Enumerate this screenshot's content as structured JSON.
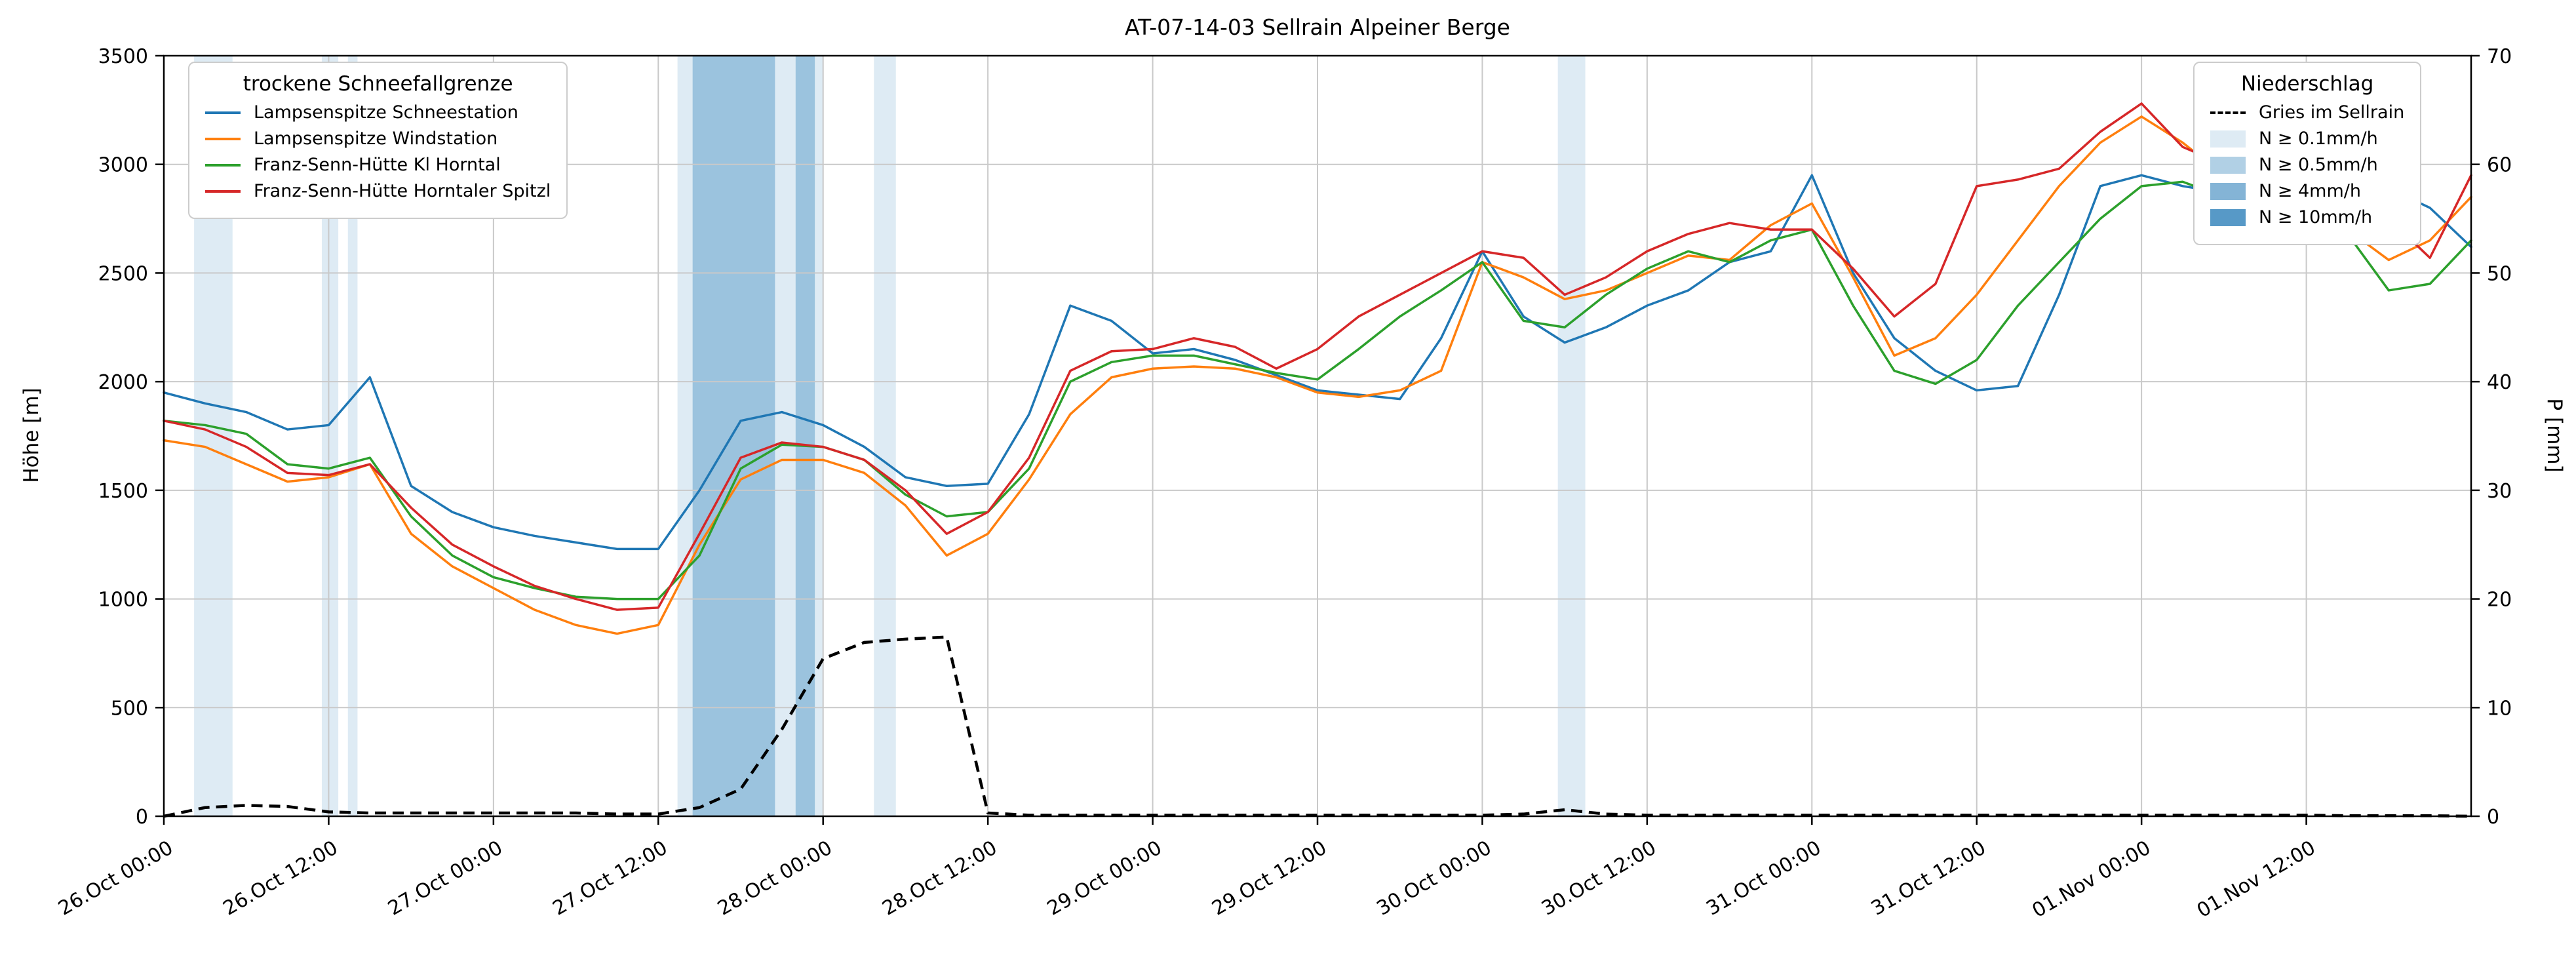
{
  "title": "AT-07-14-03 Sellrain Alpeiner Berge",
  "axes": {
    "y_left_label": "Höhe [m]",
    "y_right_label": "P [mm]",
    "y_left_ticks": [
      0,
      500,
      1000,
      1500,
      2000,
      2500,
      3000,
      3500
    ],
    "y_right_ticks": [
      0,
      10,
      20,
      30,
      40,
      50,
      60,
      70
    ],
    "x_ticks": [
      {
        "hour": 0,
        "label": "26.Oct 00:00"
      },
      {
        "hour": 12,
        "label": "26.Oct 12:00"
      },
      {
        "hour": 24,
        "label": "27.Oct 00:00"
      },
      {
        "hour": 36,
        "label": "27.Oct 12:00"
      },
      {
        "hour": 48,
        "label": "28.Oct 00:00"
      },
      {
        "hour": 60,
        "label": "28.Oct 12:00"
      },
      {
        "hour": 72,
        "label": "29.Oct 00:00"
      },
      {
        "hour": 84,
        "label": "29.Oct 12:00"
      },
      {
        "hour": 96,
        "label": "30.Oct 00:00"
      },
      {
        "hour": 108,
        "label": "30.Oct 12:00"
      },
      {
        "hour": 120,
        "label": "31.Oct 00:00"
      },
      {
        "hour": 132,
        "label": "31.Oct 12:00"
      },
      {
        "hour": 144,
        "label": "01.Nov 00:00"
      },
      {
        "hour": 156,
        "label": "01.Nov 12:00"
      }
    ]
  },
  "legend_sfg": {
    "title": "trockene Schneefallgrenze",
    "items": [
      {
        "label": "Lampsenspitze Schneestation",
        "color": "#1f77b4"
      },
      {
        "label": "Lampsenspitze Windstation",
        "color": "#ff7f0e"
      },
      {
        "label": "Franz-Senn-Hütte Kl Horntal",
        "color": "#2ca02c"
      },
      {
        "label": "Franz-Senn-Hütte Horntaler Spitzl",
        "color": "#d62728"
      }
    ]
  },
  "legend_precip": {
    "title": "Niederschlag",
    "items": [
      {
        "label": "Gries im Sellrain",
        "type": "dashed-line",
        "color": "#000000"
      },
      {
        "label": "N ≥ 0.1mm/h",
        "type": "patch",
        "color": "rgba(31,119,180,0.15)"
      },
      {
        "label": "N ≥ 0.5mm/h",
        "type": "patch",
        "color": "rgba(31,119,180,0.35)"
      },
      {
        "label": "N ≥ 4mm/h",
        "type": "patch",
        "color": "rgba(31,119,180,0.55)"
      },
      {
        "label": "N ≥ 10mm/h",
        "type": "patch",
        "color": "rgba(31,119,180,0.75)"
      }
    ]
  },
  "band_colors": {
    "1": "rgba(31,119,180,0.15)",
    "2": "rgba(31,119,180,0.35)",
    "3": "rgba(31,119,180,0.55)",
    "4": "rgba(31,119,180,0.75)"
  },
  "chart_data": {
    "type": "line",
    "title": "AT-07-14-03 Sellrain Alpeiner Berge",
    "xlabel": "",
    "ylabel_left": "Höhe [m]",
    "ylabel_right": "P [mm]",
    "x_unit": "hours since 26.Oct 00:00",
    "x_range": [
      0,
      168
    ],
    "ylim_left": [
      0,
      3500
    ],
    "ylim_right": [
      0,
      70
    ],
    "grid": true,
    "x_hours": [
      0,
      3,
      6,
      9,
      12,
      15,
      18,
      21,
      24,
      27,
      30,
      33,
      36,
      39,
      42,
      45,
      48,
      51,
      54,
      57,
      60,
      63,
      66,
      69,
      72,
      75,
      78,
      81,
      84,
      87,
      90,
      93,
      96,
      99,
      102,
      105,
      108,
      111,
      114,
      117,
      120,
      123,
      126,
      129,
      132,
      135,
      138,
      141,
      144,
      147,
      150,
      153,
      156,
      159,
      162,
      165,
      168
    ],
    "series": [
      {
        "name": "Lampsenspitze Schneestation",
        "color": "#1f77b4",
        "axis": "left",
        "values": [
          1950,
          1900,
          1860,
          1780,
          1800,
          2020,
          1520,
          1400,
          1330,
          1290,
          1260,
          1230,
          1230,
          1500,
          1820,
          1860,
          1800,
          1700,
          1560,
          1520,
          1530,
          1850,
          2350,
          2280,
          2130,
          2150,
          2100,
          2030,
          1960,
          1940,
          1920,
          2200,
          2600,
          2300,
          2180,
          2250,
          2350,
          2420,
          2550,
          2600,
          2950,
          2500,
          2200,
          2050,
          1960,
          1980,
          2400,
          2900,
          2950,
          2900,
          2870,
          2840,
          2810,
          2830,
          2890,
          2800,
          2620
        ]
      },
      {
        "name": "Lampsenspitze Windstation",
        "color": "#ff7f0e",
        "axis": "left",
        "values": [
          1730,
          1700,
          1620,
          1540,
          1560,
          1620,
          1300,
          1150,
          1050,
          950,
          880,
          840,
          880,
          1250,
          1550,
          1640,
          1640,
          1580,
          1430,
          1200,
          1300,
          1550,
          1850,
          2020,
          2060,
          2070,
          2060,
          2020,
          1950,
          1930,
          1960,
          2050,
          2550,
          2480,
          2380,
          2420,
          2500,
          2580,
          2560,
          2720,
          2820,
          2480,
          2120,
          2200,
          2400,
          2650,
          2900,
          3100,
          3220,
          3100,
          2950,
          2870,
          2800,
          2700,
          2560,
          2650,
          2850
        ]
      },
      {
        "name": "Franz-Senn-Hütte Kl Horntal",
        "color": "#2ca02c",
        "axis": "left",
        "values": [
          1820,
          1800,
          1760,
          1620,
          1600,
          1650,
          1380,
          1200,
          1100,
          1050,
          1010,
          1000,
          1000,
          1200,
          1600,
          1710,
          1700,
          1640,
          1480,
          1380,
          1400,
          1600,
          2000,
          2090,
          2120,
          2120,
          2080,
          2040,
          2010,
          2150,
          2300,
          2420,
          2550,
          2280,
          2250,
          2400,
          2520,
          2600,
          2550,
          2650,
          2700,
          2350,
          2050,
          1990,
          2100,
          2350,
          2550,
          2750,
          2900,
          2920,
          2850,
          2780,
          2760,
          2680,
          2420,
          2450,
          2650
        ]
      },
      {
        "name": "Franz-Senn-Hütte Horntaler Spitzl",
        "color": "#d62728",
        "axis": "left",
        "values": [
          1820,
          1780,
          1700,
          1580,
          1570,
          1620,
          1420,
          1250,
          1150,
          1060,
          1000,
          950,
          960,
          1300,
          1650,
          1720,
          1700,
          1640,
          1500,
          1300,
          1400,
          1650,
          2050,
          2140,
          2150,
          2200,
          2160,
          2060,
          2150,
          2300,
          2400,
          2500,
          2600,
          2570,
          2400,
          2480,
          2600,
          2680,
          2730,
          2700,
          2700,
          2520,
          2300,
          2450,
          2900,
          2930,
          2980,
          3150,
          3280,
          3080,
          3000,
          2950,
          2900,
          2860,
          2750,
          2570,
          2950
        ]
      }
    ],
    "precip_series": {
      "name": "Gries im Sellrain",
      "color": "#000000",
      "style": "dashed",
      "axis": "right",
      "values": [
        0,
        0.8,
        1.0,
        0.9,
        0.4,
        0.3,
        0.3,
        0.3,
        0.3,
        0.3,
        0.3,
        0.2,
        0.2,
        0.8,
        2.5,
        8,
        14.5,
        16,
        16.3,
        16.5,
        0.3,
        0.1,
        0.1,
        0.1,
        0.1,
        0.1,
        0.1,
        0.1,
        0.1,
        0.1,
        0.1,
        0.1,
        0.1,
        0.2,
        0.6,
        0.2,
        0.1,
        0.1,
        0.1,
        0.1,
        0.1,
        0.1,
        0.1,
        0.1,
        0.1,
        0.1,
        0.1,
        0.1,
        0.1,
        0.1,
        0.1,
        0.1,
        0.1,
        0.05,
        0.05,
        0.05,
        0
      ]
    },
    "precip_bands": [
      {
        "start_h": 2.2,
        "end_h": 5.0,
        "intensity": "N ≥ 0.1mm/h",
        "level": 1
      },
      {
        "start_h": 11.5,
        "end_h": 12.7,
        "intensity": "N ≥ 0.1mm/h",
        "level": 1
      },
      {
        "start_h": 13.4,
        "end_h": 14.1,
        "intensity": "N ≥ 0.1mm/h",
        "level": 1
      },
      {
        "start_h": 37.4,
        "end_h": 48.0,
        "intensity": "N ≥ 0.1mm/h",
        "level": 1
      },
      {
        "start_h": 38.5,
        "end_h": 44.5,
        "intensity": "N ≥ 0.5mm/h",
        "level": 2
      },
      {
        "start_h": 46.0,
        "end_h": 47.4,
        "intensity": "N ≥ 0.5mm/h",
        "level": 2
      },
      {
        "start_h": 51.7,
        "end_h": 53.3,
        "intensity": "N ≥ 0.1mm/h",
        "level": 1
      },
      {
        "start_h": 101.5,
        "end_h": 103.5,
        "intensity": "N ≥ 0.1mm/h",
        "level": 1
      }
    ]
  }
}
